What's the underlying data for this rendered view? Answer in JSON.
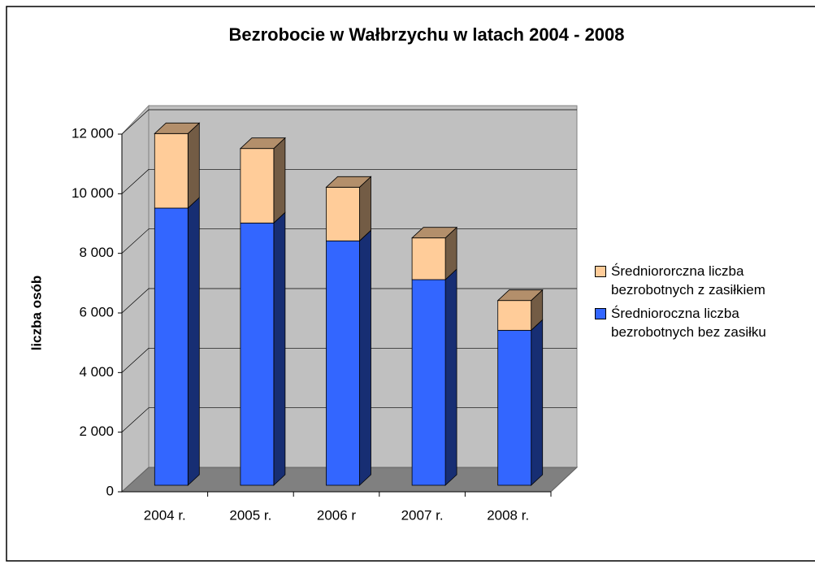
{
  "chart_data": {
    "type": "bar",
    "stacked": true,
    "title": "Bezrobocie w Wałbrzychu w latach 2004 - 2008",
    "y_label": "liczba osób",
    "categories": [
      "2004 r.",
      "2005 r.",
      "2006 r",
      "2007 r.",
      "2008 r."
    ],
    "series": [
      {
        "name": "Średnioroczna liczba bezrobotnych bez zasiłku",
        "color": "#3366ff",
        "values": [
          9300,
          8800,
          8200,
          6900,
          5200
        ]
      },
      {
        "name": "Średniororczna liczba bezrobotnych z zasiłkiem",
        "color": "#ffcc99",
        "values": [
          2500,
          2500,
          1800,
          1400,
          1000
        ]
      }
    ],
    "ylim": [
      0,
      12000
    ],
    "yticks": [
      {
        "value": 0,
        "label": "0"
      },
      {
        "value": 2000,
        "label": "2 000"
      },
      {
        "value": 4000,
        "label": "4 000"
      },
      {
        "value": 6000,
        "label": "6 000"
      },
      {
        "value": 8000,
        "label": "8 000"
      },
      {
        "value": 10000,
        "label": "10 000"
      },
      {
        "value": 12000,
        "label": "12 000"
      }
    ],
    "grid": true,
    "legend": "right"
  }
}
